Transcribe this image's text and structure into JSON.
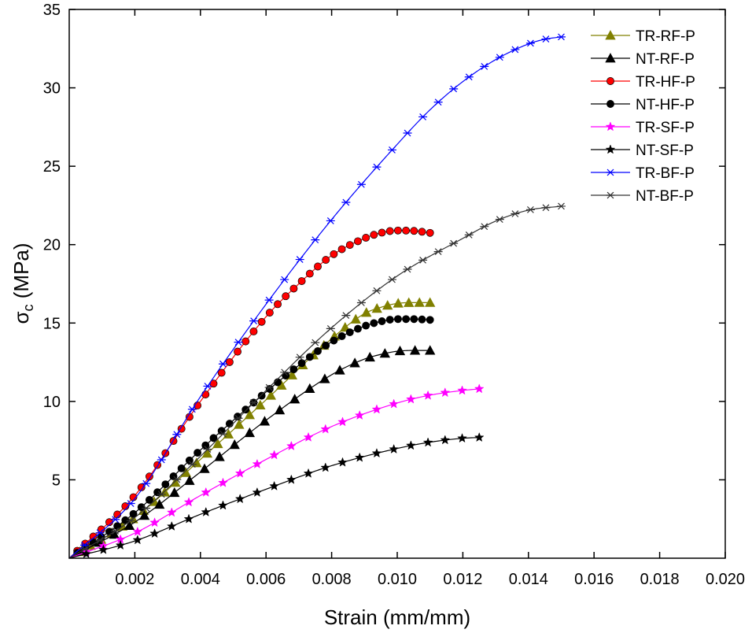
{
  "chart_data": {
    "type": "line",
    "title": "",
    "xlabel": "Strain (mm/mm)",
    "ylabel": {
      "main": "σ",
      "sub": "c",
      "unit": " (MPa)"
    },
    "xlim": [
      0,
      0.02
    ],
    "ylim": [
      0,
      35
    ],
    "x_ticks": [
      0.002,
      0.004,
      0.006,
      0.008,
      0.01,
      0.012,
      0.014,
      0.016,
      0.018,
      0.02
    ],
    "x_tick_labels": [
      "0.002",
      "0.004",
      "0.006",
      "0.008",
      "0.010",
      "0.012",
      "0.014",
      "0.016",
      "0.018",
      "0.020"
    ],
    "y_ticks": [
      5,
      10,
      15,
      20,
      25,
      30,
      35
    ],
    "y_tick_labels": [
      "5",
      "10",
      "15",
      "20",
      "25",
      "30",
      "35"
    ],
    "grid": false,
    "legend_position": "top-right",
    "series": [
      {
        "name": "TR-RF-P",
        "color": "#808000",
        "marker": "triangle",
        "n_markers": 34,
        "x": [
          0,
          0.002,
          0.004,
          0.006,
          0.008,
          0.009,
          0.0095,
          0.01,
          0.0105,
          0.011
        ],
        "y": [
          0,
          2.6,
          6.3,
          10.1,
          14.0,
          15.6,
          16.0,
          16.25,
          16.3,
          16.3
        ]
      },
      {
        "name": "NT-RF-P",
        "color": "#000000",
        "marker": "triangle",
        "n_markers": 24,
        "x": [
          0,
          0.002,
          0.004,
          0.006,
          0.008,
          0.009,
          0.0095,
          0.01,
          0.0105,
          0.011
        ],
        "y": [
          0,
          2.3,
          5.5,
          8.8,
          11.7,
          12.7,
          13.0,
          13.2,
          13.25,
          13.25
        ]
      },
      {
        "name": "TR-HF-P",
        "color": "#ff0000",
        "marker": "circle",
        "n_markers": 45,
        "x": [
          0,
          0.002,
          0.004,
          0.006,
          0.007,
          0.008,
          0.009,
          0.0095,
          0.01,
          0.0105,
          0.011
        ],
        "y": [
          0,
          4.0,
          10.0,
          15.4,
          17.5,
          19.3,
          20.4,
          20.75,
          20.9,
          20.88,
          20.75
        ]
      },
      {
        "name": "NT-HF-P",
        "color": "#000000",
        "marker": "circle",
        "n_markers": 45,
        "x": [
          0,
          0.002,
          0.004,
          0.006,
          0.007,
          0.008,
          0.009,
          0.0095,
          0.01,
          0.0105,
          0.011
        ],
        "y": [
          0,
          2.9,
          6.9,
          10.6,
          12.3,
          13.8,
          14.8,
          15.1,
          15.25,
          15.25,
          15.2
        ]
      },
      {
        "name": "TR-SF-P",
        "color": "#ff00ff",
        "marker": "star",
        "n_markers": 24,
        "x": [
          0,
          0.002,
          0.004,
          0.006,
          0.008,
          0.01,
          0.011,
          0.012,
          0.0125
        ],
        "y": [
          0,
          1.6,
          4.0,
          6.3,
          8.4,
          9.9,
          10.4,
          10.7,
          10.8
        ]
      },
      {
        "name": "NT-SF-P",
        "color": "#000000",
        "marker": "star",
        "n_markers": 24,
        "x": [
          0,
          0.002,
          0.004,
          0.006,
          0.008,
          0.01,
          0.011,
          0.012,
          0.0125
        ],
        "y": [
          0,
          1.1,
          2.8,
          4.4,
          5.9,
          7.0,
          7.4,
          7.65,
          7.7
        ]
      },
      {
        "name": "TR-BF-P",
        "color": "#0000ff",
        "marker": "asterisk",
        "n_markers": 32,
        "x": [
          0,
          0.002,
          0.004,
          0.006,
          0.008,
          0.01,
          0.011,
          0.012,
          0.013,
          0.014,
          0.0145,
          0.015
        ],
        "y": [
          0,
          3.8,
          10.3,
          16.2,
          21.6,
          26.4,
          28.6,
          30.4,
          31.8,
          32.8,
          33.1,
          33.25
        ]
      },
      {
        "name": "NT-BF-P",
        "color": "#333333",
        "marker": "asterisk",
        "n_markers": 32,
        "x": [
          0,
          0.002,
          0.004,
          0.006,
          0.008,
          0.01,
          0.012,
          0.013,
          0.014,
          0.015
        ],
        "y": [
          0,
          2.6,
          6.5,
          10.7,
          14.7,
          18.0,
          20.4,
          21.5,
          22.2,
          22.45
        ]
      }
    ]
  }
}
